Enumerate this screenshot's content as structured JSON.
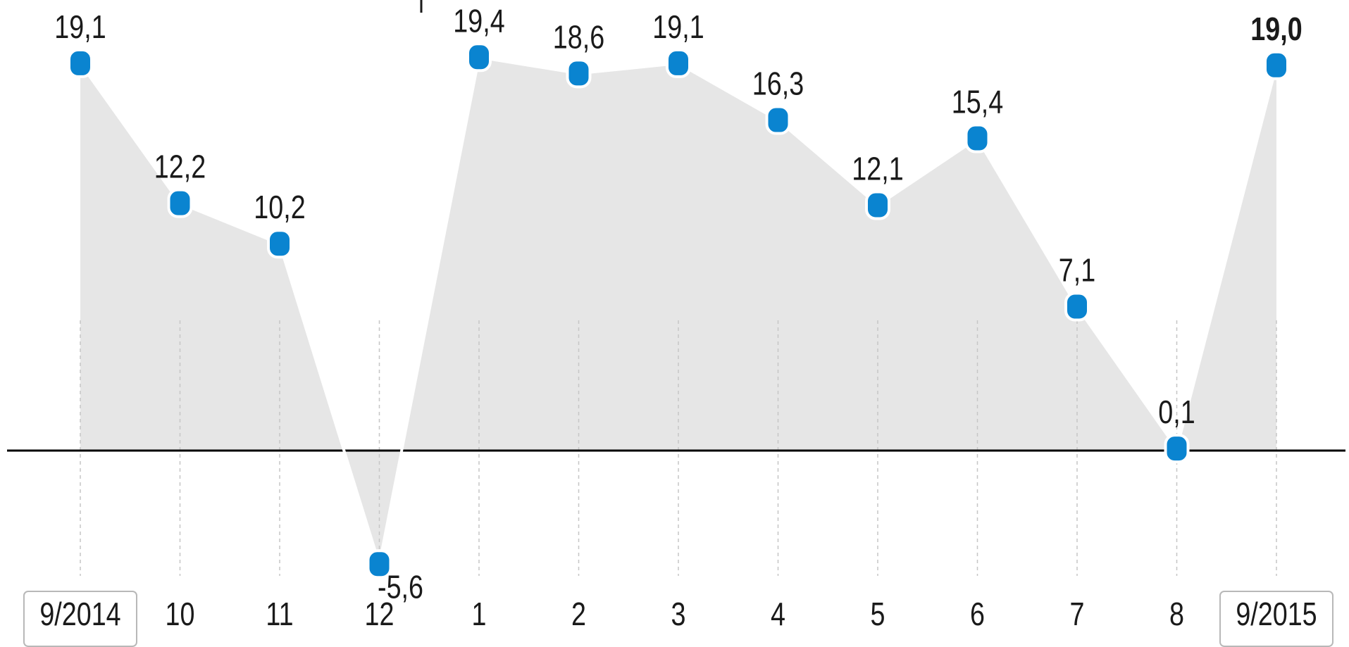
{
  "chart_data": {
    "type": "area",
    "title": "",
    "xlabel": "",
    "ylabel": "",
    "categories": [
      "9/2014",
      "10",
      "11",
      "12",
      "1",
      "2",
      "3",
      "4",
      "5",
      "6",
      "7",
      "8",
      "9/2015"
    ],
    "values": [
      19.1,
      12.2,
      10.2,
      -5.6,
      19.4,
      18.6,
      19.1,
      16.3,
      12.1,
      15.4,
      7.1,
      0.1,
      19.0
    ],
    "value_labels": [
      "19,1",
      "12,2",
      "10,2",
      "-5,6",
      "19,4",
      "18,6",
      "19,1",
      "16,3",
      "12,1",
      "15,4",
      "7,1",
      "0,1",
      "19,0"
    ],
    "emphasized_index": 12,
    "boxed_category_indices": [
      0,
      12
    ],
    "baseline": 0,
    "grid": false,
    "legend": "none",
    "colors": {
      "point": "#0a84d0",
      "area": "#e6e6e6",
      "baseline": "#000000",
      "drop_line": "#c6c6c6",
      "text": "#1a1a1a"
    }
  }
}
